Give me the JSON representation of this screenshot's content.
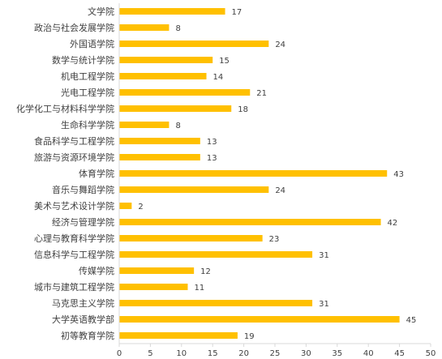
{
  "chart_data": {
    "type": "bar",
    "orientation": "horizontal",
    "title": "",
    "xlabel": "",
    "ylabel": "",
    "categories": [
      "文学院",
      "政治与社会发展学院",
      "外国语学院",
      "数学与统计学院",
      "机电工程学院",
      "光电工程学院",
      "化学化工与材料科学学院",
      "生命科学学院",
      "食品科学与工程学院",
      "旅游与资源环境学院",
      "体育学院",
      "音乐与舞蹈学院",
      "美术与艺术设计学院",
      "经济与管理学院",
      "心理与教育科学学院",
      "信息科学与工程学院",
      "传媒学院",
      "城市与建筑工程学院",
      "马克思主义学院",
      "大学英语教学部",
      "初等教育学院"
    ],
    "values": [
      17,
      8,
      24,
      15,
      14,
      21,
      18,
      8,
      13,
      13,
      43,
      24,
      2,
      42,
      23,
      31,
      12,
      11,
      31,
      45,
      19
    ],
    "xlim": [
      0,
      50
    ],
    "xticks": [
      0,
      5,
      10,
      15,
      20,
      25,
      30,
      35,
      40,
      45,
      50
    ],
    "grid": false,
    "legend": "none",
    "bar_color": "#FFC000",
    "axis_color": "#D9D9D9",
    "text_color": "#404040"
  }
}
